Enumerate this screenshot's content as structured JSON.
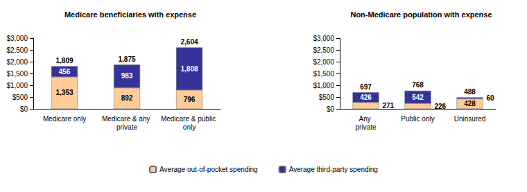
{
  "chart_data": [
    {
      "type": "bar",
      "title": "Medicare beneficiaries with expense",
      "categories": [
        "Medicare only",
        "Medicare & any private",
        "Medicare & public only"
      ],
      "series": [
        {
          "name": "Average out-of-pocket spending",
          "color": "#FFCC99",
          "values": [
            1353,
            892,
            796
          ],
          "value_labels": [
            "1,353",
            "892",
            "796"
          ]
        },
        {
          "name": "Average third-party spending",
          "color": "#333399",
          "values": [
            456,
            983,
            1808
          ],
          "value_labels": [
            "456",
            "983",
            "1,808"
          ]
        }
      ],
      "totals": [
        1809,
        1875,
        2604
      ],
      "total_labels": [
        "1,809",
        "1,875",
        "2,604"
      ],
      "ylim": [
        0,
        3000
      ],
      "yticks": [
        {
          "value": 0,
          "label": "$0"
        },
        {
          "value": 500,
          "label": "$500"
        },
        {
          "value": 1000,
          "label": "$1,000"
        },
        {
          "value": 1500,
          "label": "$1,500"
        },
        {
          "value": 2000,
          "label": "$2,000"
        },
        {
          "value": 2500,
          "label": "$2,500"
        },
        {
          "value": 3000,
          "label": "$3,000"
        }
      ],
      "stacked": true,
      "data_labels": true,
      "grid": false,
      "legend": "bottom"
    },
    {
      "type": "bar",
      "title": "Non-Medicare population with expense",
      "categories": [
        "Any private",
        "Public only",
        "Uninsured"
      ],
      "series": [
        {
          "name": "Average out-of-pocket spending",
          "color": "#FFCC99",
          "values": [
            271,
            226,
            428
          ]
        },
        {
          "name": "Average third-party spending",
          "color": "#333399",
          "values": [
            426,
            542,
            60
          ]
        }
      ],
      "totals": [
        697,
        768,
        488
      ],
      "ylim": [
        0,
        3000
      ],
      "yticks": [
        {
          "value": 0,
          "label": "$0"
        },
        {
          "value": 500,
          "label": "$500"
        },
        {
          "value": 1000,
          "label": "$1,000"
        },
        {
          "value": 1500,
          "label": "$1,500"
        },
        {
          "value": 2000,
          "label": "$2,000"
        },
        {
          "value": 2500,
          "label": "$2,500"
        },
        {
          "value": 3000,
          "label": "$3,000"
        }
      ],
      "stacked": true,
      "data_labels": true,
      "grid": false
    }
  ]
}
